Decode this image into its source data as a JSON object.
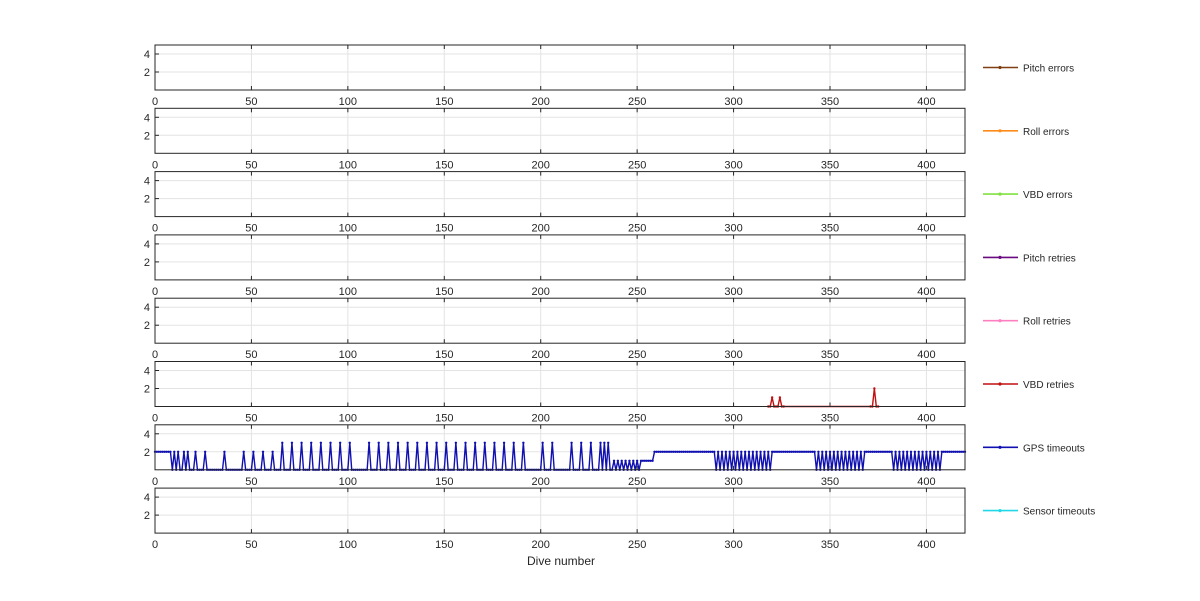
{
  "chart_data": {
    "type": "line",
    "xlabel": "Dive number",
    "xlim": [
      0,
      420
    ],
    "x_ticks": [
      0,
      50,
      100,
      150,
      200,
      250,
      300,
      350,
      400
    ],
    "ylim": [
      0,
      5
    ],
    "y_ticks": [
      2,
      4
    ],
    "grid": true,
    "legend_placement": "right of each panel",
    "panels": [
      {
        "name": "Pitch errors",
        "color": "#7f3f10",
        "x": [],
        "y": []
      },
      {
        "name": "Roll errors",
        "color": "#ff8c1a",
        "x": [],
        "y": []
      },
      {
        "name": "VBD errors",
        "color": "#7fe040",
        "x": [],
        "y": []
      },
      {
        "name": "Pitch retries",
        "color": "#6a0a80",
        "x": [],
        "y": []
      },
      {
        "name": "Roll retries",
        "color": "#ff80c0",
        "x": [],
        "y": []
      },
      {
        "name": "VBD retries",
        "color": "#c01010",
        "x": [
          318,
          319,
          320,
          321,
          322,
          323,
          324,
          325,
          326,
          371,
          372,
          373,
          374,
          375
        ],
        "y": [
          0,
          0,
          1,
          0,
          0,
          0,
          1,
          0,
          0,
          0,
          0,
          2,
          0,
          0
        ]
      },
      {
        "name": "GPS timeouts",
        "color": "#1010b0",
        "x": [],
        "y": []
      },
      {
        "name": "Sensor timeouts",
        "color": "#20d8e8",
        "x": [],
        "y": []
      }
    ]
  }
}
